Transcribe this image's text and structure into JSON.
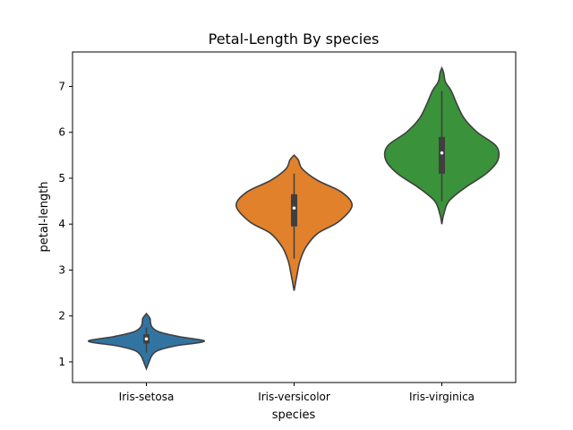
{
  "chart_data": {
    "type": "violin",
    "title": "Petal-Length By species",
    "xlabel": "species",
    "ylabel": "petal-length",
    "ylim": [
      0.55,
      7.75
    ],
    "yticks": [
      1,
      2,
      3,
      4,
      5,
      6,
      7
    ],
    "categories": [
      "Iris-setosa",
      "Iris-versicolor",
      "Iris-virginica"
    ],
    "series": [
      {
        "category": "Iris-setosa",
        "color": "#3274a1",
        "min": 0.85,
        "max": 2.05,
        "q1": 1.4,
        "median": 1.5,
        "q3": 1.6,
        "whisker_low": 1.2,
        "whisker_high": 1.75,
        "profile": [
          [
            0.85,
            0.0
          ],
          [
            0.95,
            0.03
          ],
          [
            1.05,
            0.06
          ],
          [
            1.15,
            0.1
          ],
          [
            1.25,
            0.2
          ],
          [
            1.35,
            0.5
          ],
          [
            1.45,
            0.98
          ],
          [
            1.55,
            0.55
          ],
          [
            1.65,
            0.22
          ],
          [
            1.75,
            0.1
          ],
          [
            1.85,
            0.07
          ],
          [
            1.95,
            0.06
          ],
          [
            2.05,
            0.0
          ]
        ]
      },
      {
        "category": "Iris-versicolor",
        "color": "#e1812c",
        "min": 2.55,
        "max": 5.5,
        "q1": 3.95,
        "median": 4.35,
        "q3": 4.65,
        "whisker_low": 3.25,
        "whisker_high": 5.1,
        "profile": [
          [
            2.55,
            0.0
          ],
          [
            2.9,
            0.05
          ],
          [
            3.2,
            0.1
          ],
          [
            3.5,
            0.2
          ],
          [
            3.8,
            0.4
          ],
          [
            4.05,
            0.75
          ],
          [
            4.4,
            0.98
          ],
          [
            4.7,
            0.8
          ],
          [
            4.95,
            0.4
          ],
          [
            5.2,
            0.14
          ],
          [
            5.4,
            0.07
          ],
          [
            5.5,
            0.0
          ]
        ]
      },
      {
        "category": "Iris-virginica",
        "color": "#3a923a",
        "min": 4.0,
        "max": 7.4,
        "q1": 5.1,
        "median": 5.55,
        "q3": 5.9,
        "whisker_low": 4.5,
        "whisker_high": 6.9,
        "profile": [
          [
            4.0,
            0.0
          ],
          [
            4.2,
            0.03
          ],
          [
            4.5,
            0.12
          ],
          [
            4.8,
            0.4
          ],
          [
            5.1,
            0.75
          ],
          [
            5.4,
            0.95
          ],
          [
            5.7,
            0.92
          ],
          [
            6.0,
            0.6
          ],
          [
            6.3,
            0.38
          ],
          [
            6.6,
            0.26
          ],
          [
            6.9,
            0.16
          ],
          [
            7.1,
            0.06
          ],
          [
            7.3,
            0.03
          ],
          [
            7.4,
            0.0
          ]
        ]
      }
    ]
  }
}
